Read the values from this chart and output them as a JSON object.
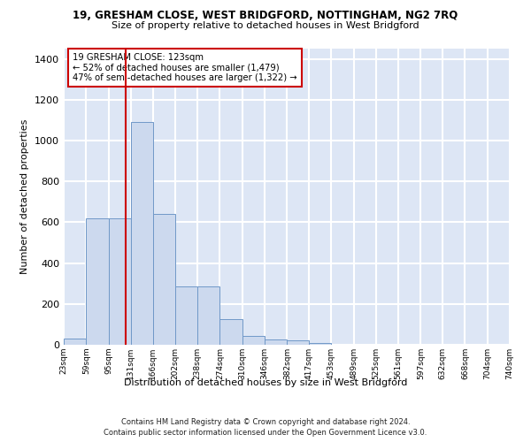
{
  "title": "19, GRESHAM CLOSE, WEST BRIDGFORD, NOTTINGHAM, NG2 7RQ",
  "subtitle": "Size of property relative to detached houses in West Bridgford",
  "xlabel": "Distribution of detached houses by size in West Bridgford",
  "ylabel": "Number of detached properties",
  "bar_color": "#ccd9ee",
  "bar_edge_color": "#7098c8",
  "vline_value": 123,
  "vline_color": "#cc0000",
  "annotation_text": "19 GRESHAM CLOSE: 123sqm\n← 52% of detached houses are smaller (1,479)\n47% of semi-detached houses are larger (1,322) →",
  "annotation_box_color": "#ffffff",
  "annotation_box_edge": "#cc0000",
  "bin_edges": [
    23,
    59,
    95,
    131,
    166,
    202,
    238,
    274,
    310,
    346,
    382,
    417,
    453,
    489,
    525,
    561,
    597,
    632,
    668,
    704,
    740
  ],
  "bin_labels": [
    "23sqm",
    "59sqm",
    "95sqm",
    "131sqm",
    "166sqm",
    "202sqm",
    "238sqm",
    "274sqm",
    "310sqm",
    "346sqm",
    "382sqm",
    "417sqm",
    "453sqm",
    "489sqm",
    "525sqm",
    "561sqm",
    "597sqm",
    "632sqm",
    "668sqm",
    "704sqm",
    "740sqm"
  ],
  "bar_heights": [
    30,
    620,
    620,
    1090,
    640,
    285,
    285,
    125,
    45,
    25,
    20,
    10,
    0,
    0,
    0,
    0,
    0,
    0,
    0,
    0
  ],
  "ylim": [
    0,
    1450
  ],
  "yticks": [
    0,
    200,
    400,
    600,
    800,
    1000,
    1200,
    1400
  ],
  "footer_line1": "Contains HM Land Registry data © Crown copyright and database right 2024.",
  "footer_line2": "Contains public sector information licensed under the Open Government Licence v3.0.",
  "background_color": "#dde6f5",
  "grid_color": "#ffffff",
  "fig_background": "#ffffff"
}
